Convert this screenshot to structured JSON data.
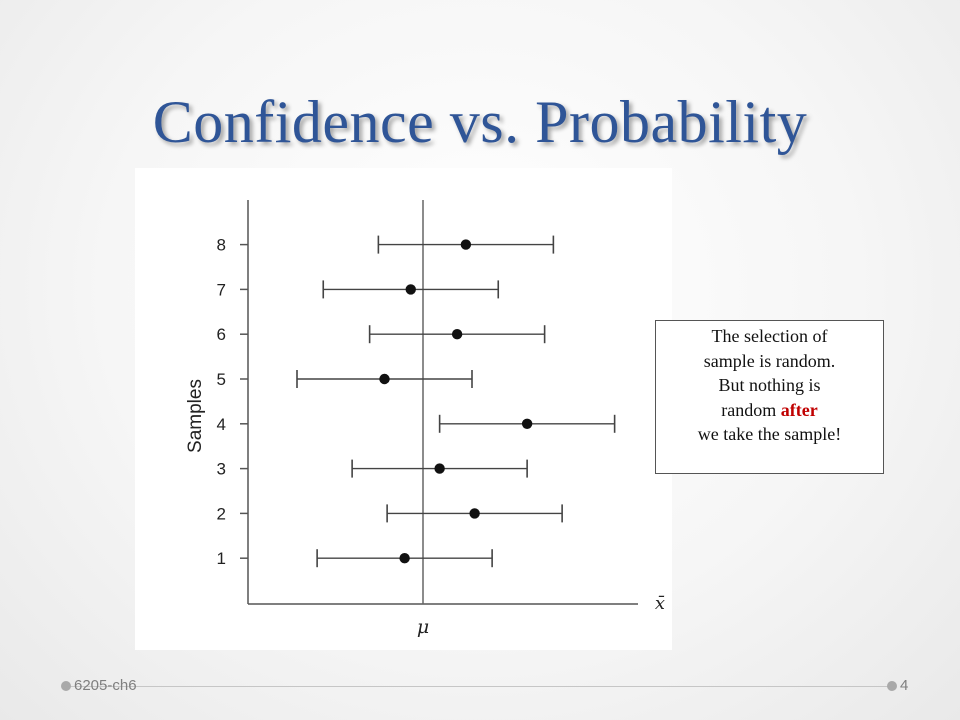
{
  "slide": {
    "title": "Confidence vs. Probability",
    "footer_left": "6205-ch6",
    "page_number": "4"
  },
  "note": {
    "line1": "The selection of",
    "line2": "sample is random.",
    "line3": "But nothing is",
    "line4_prefix": "random ",
    "line4_emphasis": "after",
    "line5": "we take the sample!"
  },
  "colors": {
    "title": "#2f5597",
    "emphasis": "#c00000"
  },
  "chart_data": {
    "type": "scatter",
    "title": "",
    "xlabel": "x̄",
    "ylabel": "Samples",
    "reference_line_label": "μ",
    "reference_line_x": 0,
    "xlim": [
      -1.95,
      2.4
    ],
    "ylim": [
      0,
      9
    ],
    "y_ticks": [
      1,
      2,
      3,
      4,
      5,
      6,
      7,
      8
    ],
    "grid": false,
    "series": [
      {
        "points": [
          {
            "sample": 1,
            "mean": -0.21,
            "lower": -1.21,
            "upper": 0.79
          },
          {
            "sample": 2,
            "mean": 0.59,
            "lower": -0.41,
            "upper": 1.59
          },
          {
            "sample": 3,
            "mean": 0.19,
            "lower": -0.81,
            "upper": 1.19
          },
          {
            "sample": 4,
            "mean": 1.19,
            "lower": 0.19,
            "upper": 2.19
          },
          {
            "sample": 5,
            "mean": -0.44,
            "lower": -1.44,
            "upper": 0.56
          },
          {
            "sample": 6,
            "mean": 0.39,
            "lower": -0.61,
            "upper": 1.39
          },
          {
            "sample": 7,
            "mean": -0.14,
            "lower": -1.14,
            "upper": 0.86
          },
          {
            "sample": 8,
            "mean": 0.49,
            "lower": -0.51,
            "upper": 1.49
          }
        ]
      }
    ]
  }
}
